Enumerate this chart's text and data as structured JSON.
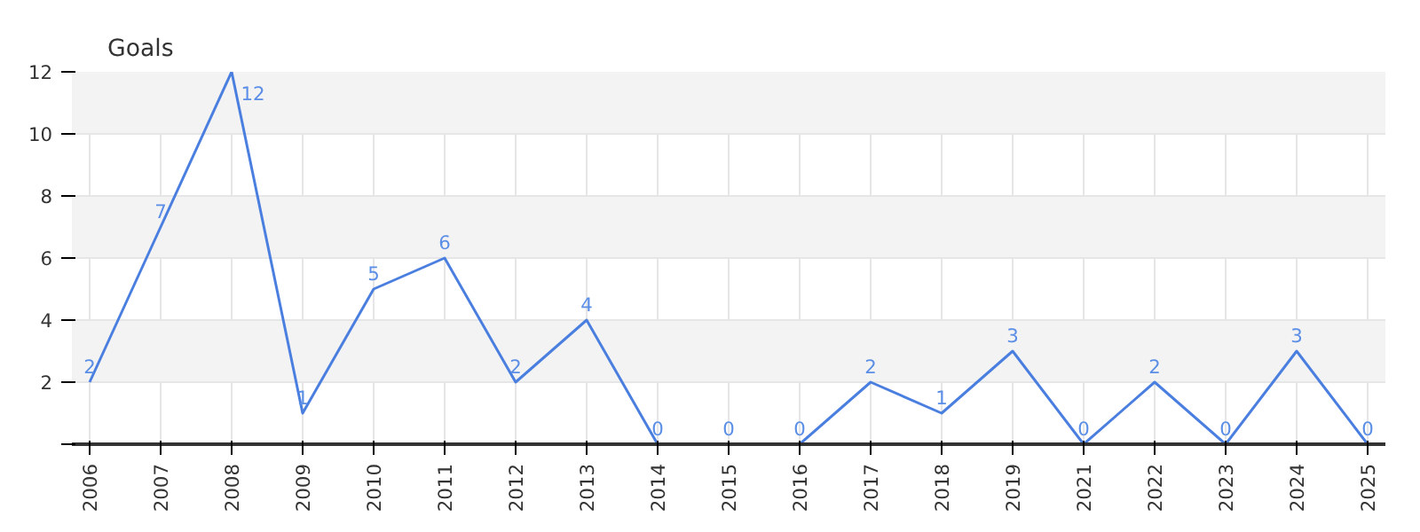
{
  "chart_data": {
    "type": "line",
    "ylabel": "Goals",
    "categories": [
      "2006",
      "2007",
      "2008",
      "2009",
      "2010",
      "2011",
      "2012",
      "2013",
      "2014",
      "2015",
      "2016",
      "2017",
      "2018",
      "2019",
      "2021",
      "2022",
      "2023",
      "2024",
      "2025"
    ],
    "series": [
      {
        "color": "#4a7fe0",
        "values": [
          2,
          7,
          12,
          1,
          5,
          6,
          2,
          4,
          0,
          0,
          0,
          2,
          1,
          3,
          0,
          2,
          0,
          3,
          0
        ]
      }
    ],
    "ylim": [
      0,
      12
    ],
    "yticks": [
      {
        "value": 0,
        "label": null
      },
      2,
      4,
      6,
      8,
      10,
      12
    ],
    "grid": true,
    "data_labels": true,
    "marker": "none",
    "line_style": "solid"
  }
}
